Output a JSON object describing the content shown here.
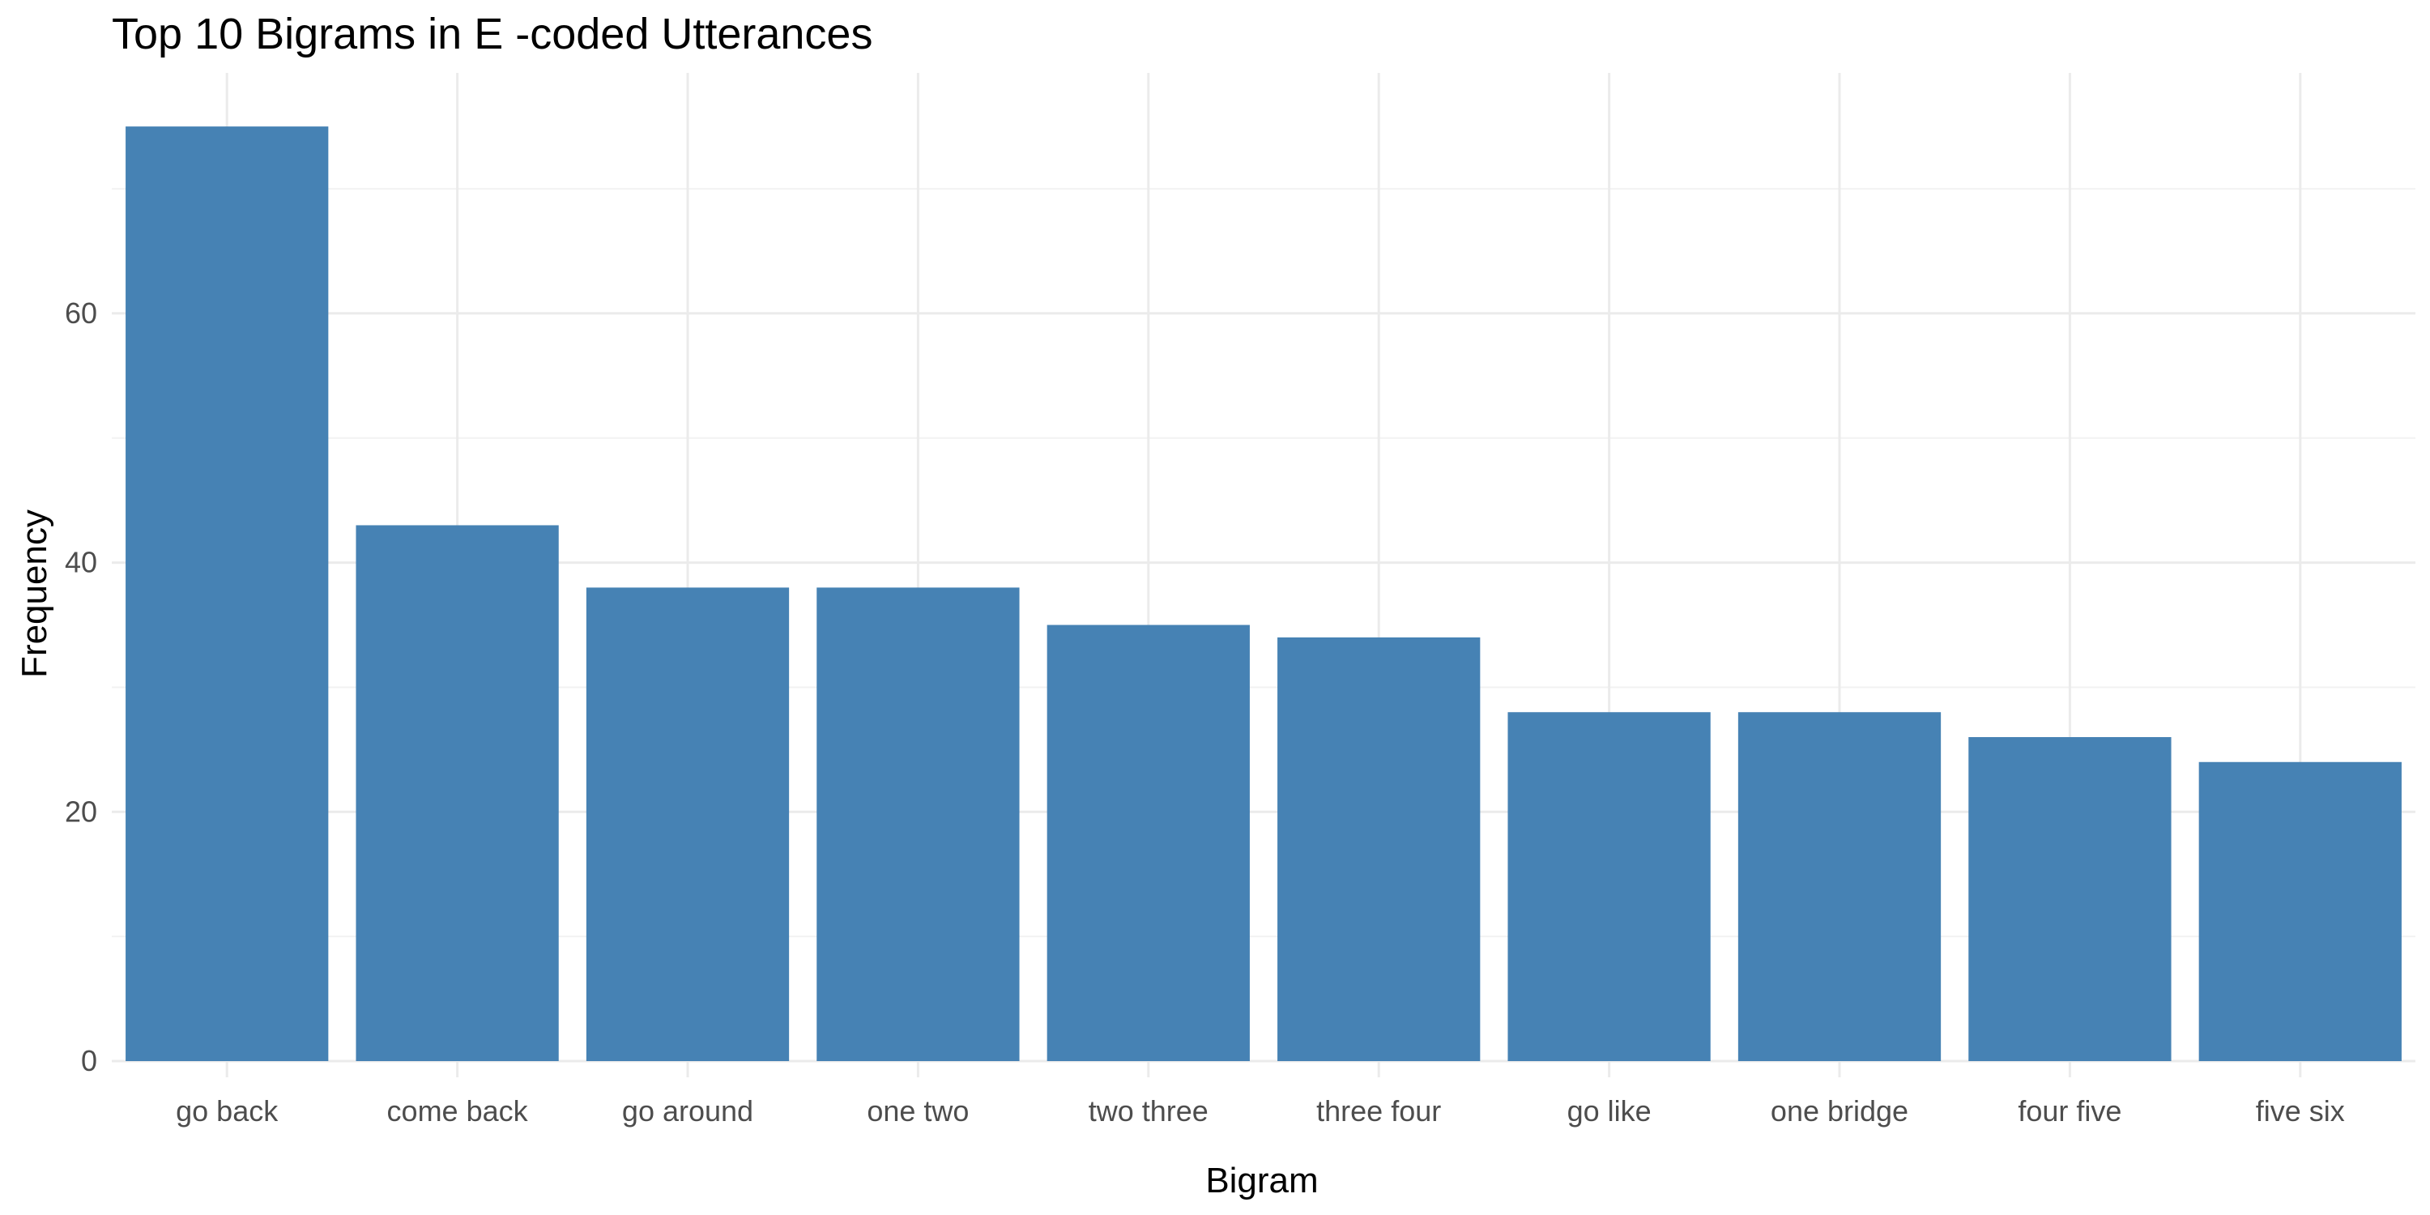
{
  "chart_data": {
    "type": "bar",
    "title": "Top 10 Bigrams in E -coded Utterances",
    "xlabel": "Bigram",
    "ylabel": "Frequency",
    "categories": [
      "go back",
      "come back",
      "go around",
      "one two",
      "two three",
      "three four",
      "go like",
      "one bridge",
      "four five",
      "five six"
    ],
    "values": [
      75,
      43,
      38,
      38,
      35,
      34,
      28,
      28,
      26,
      24
    ],
    "ylim": [
      0,
      78
    ],
    "y_ticks": [
      0,
      20,
      40,
      60
    ],
    "grid": true,
    "bar_color": "#4682B4",
    "legend": "none"
  }
}
